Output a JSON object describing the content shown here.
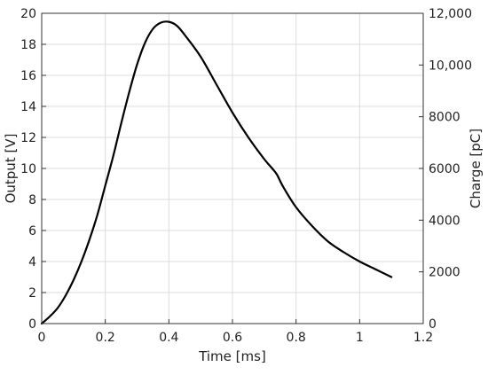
{
  "colors": {
    "line": "#000000",
    "grid": "#dcdcdc",
    "axis": "#333333"
  },
  "chart_data": {
    "type": "line",
    "title": "",
    "xlabel": "Time [ms]",
    "ylabel": "Output [V]",
    "y2label": "Charge [pC]",
    "xlim": [
      0,
      1.2
    ],
    "ylim": [
      0,
      20
    ],
    "y2lim": [
      0,
      12000
    ],
    "grid": true,
    "legend": "none",
    "x_ticks": [
      "0",
      "0.2",
      "0.4",
      "0.6",
      "0.8",
      "1",
      "1.2"
    ],
    "x_tick_values": [
      0,
      0.2,
      0.4,
      0.6,
      0.8,
      1.0,
      1.2
    ],
    "y_ticks": [
      "0",
      "2",
      "4",
      "6",
      "8",
      "10",
      "12",
      "14",
      "16",
      "18",
      "20"
    ],
    "y_tick_values": [
      0,
      2,
      4,
      6,
      8,
      10,
      12,
      14,
      16,
      18,
      20
    ],
    "y2_ticks": [
      "0",
      "2000",
      "4000",
      "6000",
      "8000",
      "10,000",
      "12,000"
    ],
    "y2_tick_values": [
      0,
      2000,
      4000,
      6000,
      8000,
      10000,
      12000
    ],
    "series": [
      {
        "x": [
          0,
          0.025,
          0.05,
          0.075,
          0.1,
          0.125,
          0.15,
          0.175,
          0.2,
          0.225,
          0.25,
          0.275,
          0.3,
          0.325,
          0.35,
          0.375,
          0.4,
          0.425,
          0.45,
          0.5,
          0.55,
          0.6,
          0.65,
          0.7,
          0.725,
          0.74,
          0.76,
          0.8,
          0.85,
          0.9,
          0.95,
          1.0,
          1.05,
          1.1
        ],
        "y": [
          0,
          0.45,
          1.0,
          1.8,
          2.8,
          4.0,
          5.4,
          7.0,
          8.9,
          10.8,
          12.9,
          14.9,
          16.7,
          18.1,
          19.0,
          19.4,
          19.45,
          19.2,
          18.6,
          17.2,
          15.4,
          13.6,
          12.0,
          10.6,
          10.0,
          9.6,
          8.8,
          7.5,
          6.3,
          5.3,
          4.6,
          4.0,
          3.5,
          3.0
        ]
      }
    ]
  }
}
